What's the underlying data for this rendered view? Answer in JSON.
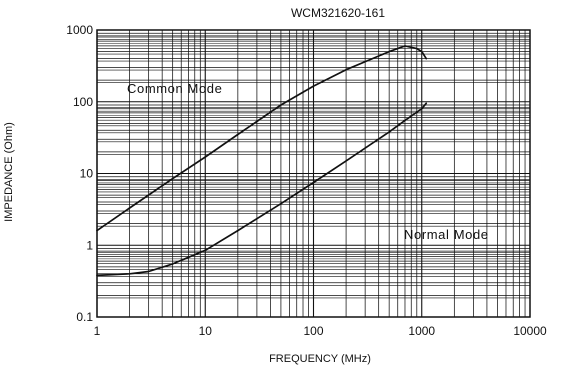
{
  "chart_data": {
    "type": "line",
    "title": "WCM321620-161",
    "xlabel": "FREQUENCY (MHz)",
    "ylabel": "IMPEDANCE (Ohm)",
    "x_scale": "log",
    "y_scale": "log",
    "xlim": [
      1,
      10000
    ],
    "ylim": [
      0.1,
      1000
    ],
    "x_ticks": [
      "1",
      "10",
      "100",
      "1000",
      "10000"
    ],
    "y_ticks": [
      "0.1",
      "1",
      "10",
      "100",
      "1000"
    ],
    "grid": true,
    "series": [
      {
        "name": "Common Mode",
        "x": [
          1,
          2,
          5,
          10,
          20,
          50,
          100,
          200,
          500,
          700,
          900,
          1000,
          1100
        ],
        "y": [
          1.6,
          3.3,
          8.5,
          17,
          35,
          90,
          165,
          280,
          500,
          600,
          550,
          500,
          400
        ]
      },
      {
        "name": "Normal Mode",
        "x": [
          1,
          2,
          3,
          5,
          7,
          10,
          20,
          50,
          100,
          200,
          500,
          700,
          1000,
          1100
        ],
        "y": [
          0.38,
          0.4,
          0.43,
          0.55,
          0.68,
          0.85,
          1.6,
          3.8,
          7.5,
          15,
          38,
          55,
          80,
          95
        ]
      }
    ],
    "annotations": [
      "Common Mode",
      "Normal Mode"
    ],
    "colors": {
      "line": "#111111",
      "grid": "#111111",
      "background": "#ffffff"
    }
  }
}
